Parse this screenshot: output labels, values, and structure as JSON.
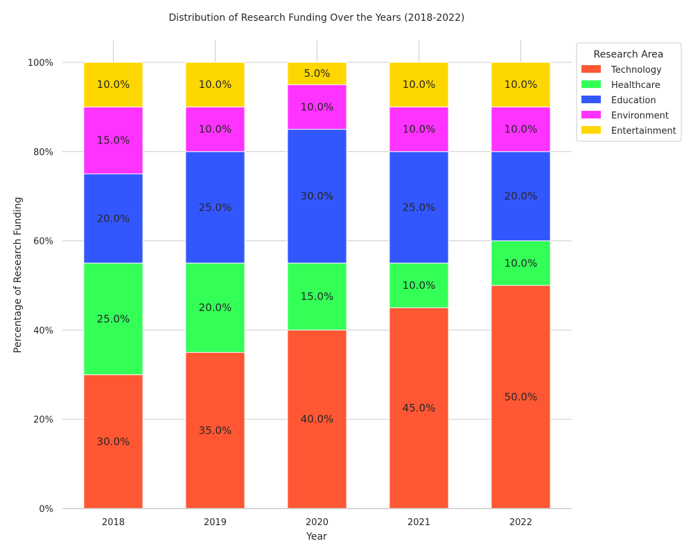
{
  "chart_data": {
    "type": "bar",
    "stacked": true,
    "title": "Distribution of Research Funding Over the Years (2018-2022)",
    "xlabel": "Year",
    "ylabel": "Percentage of Research Funding",
    "categories": [
      "2018",
      "2019",
      "2020",
      "2021",
      "2022"
    ],
    "ylim": [
      0,
      100
    ],
    "yticks": [
      "0%",
      "20%",
      "40%",
      "60%",
      "80%",
      "100%"
    ],
    "grid": true,
    "legend": {
      "title": "Research Area",
      "placement": "top-right-outside"
    },
    "series": [
      {
        "name": "Technology",
        "color": "#FF5733",
        "values": [
          30,
          35,
          40,
          45,
          50
        ]
      },
      {
        "name": "Healthcare",
        "color": "#33FF57",
        "values": [
          25,
          20,
          15,
          10,
          10
        ]
      },
      {
        "name": "Education",
        "color": "#3357FF",
        "values": [
          20,
          25,
          30,
          25,
          20
        ]
      },
      {
        "name": "Environment",
        "color": "#FF33FF",
        "values": [
          15,
          10,
          10,
          10,
          10
        ]
      },
      {
        "name": "Entertainment",
        "color": "#FFD700",
        "values": [
          10,
          10,
          5,
          10,
          10
        ]
      }
    ]
  }
}
